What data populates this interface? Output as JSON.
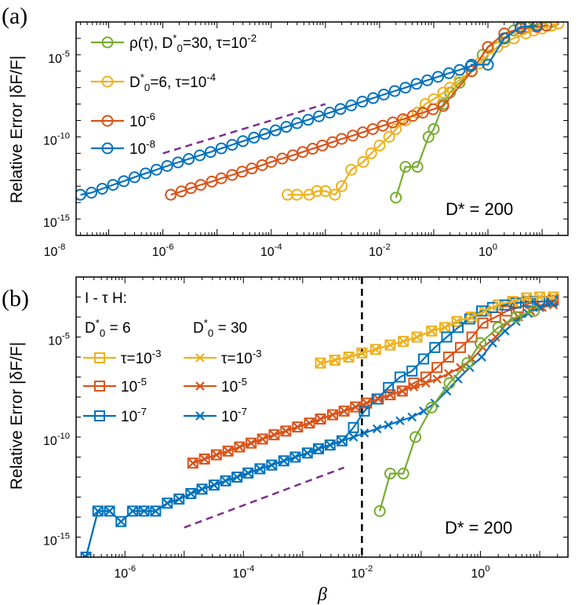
{
  "figure": {
    "xlabel": "β",
    "ylabel": "Relative Error |δF/F|"
  },
  "colors": {
    "green": "#77AC30",
    "yellow": "#EDB120",
    "orange": "#D95319",
    "blue": "#0072BD",
    "purple": "#7E2F8E",
    "black": "#000000"
  },
  "chart_data": [
    {
      "type": "line",
      "panel_label": "(a)",
      "xscale": "log",
      "yscale": "log",
      "xlim": [
        2.5e-08,
        30
      ],
      "ylim": [
        1e-16,
        0.001
      ],
      "xticks": [
        {
          "base": "10",
          "exp": "-8",
          "v": 1e-08
        },
        {
          "base": "10",
          "exp": "-6",
          "v": 1e-06
        },
        {
          "base": "10",
          "exp": "-4",
          "v": 0.0001
        },
        {
          "base": "10",
          "exp": "-2",
          "v": 0.01
        },
        {
          "base": "10",
          "exp": "0",
          "v": 1
        }
      ],
      "yticks": [
        {
          "base": "10",
          "exp": "-15",
          "v": 1e-15
        },
        {
          "base": "10",
          "exp": "-10",
          "v": 1e-10
        },
        {
          "base": "10",
          "exp": "-5",
          "v": 1e-05
        }
      ],
      "annotation": "D* = 200",
      "legend": [
        {
          "color": "green",
          "marker": "o",
          "prefix": "ρ(τ), D",
          "sup": "*",
          "sub": "0",
          "mid": "=30, τ=10",
          "exp": "-2"
        },
        {
          "color": "yellow",
          "marker": "o",
          "prefix": "D",
          "sup": "*",
          "sub": "0",
          "mid": "=6, τ=10",
          "exp": "-4"
        },
        {
          "color": "orange",
          "marker": "o",
          "prefix": "10",
          "exp": "-6"
        },
        {
          "color": "blue",
          "marker": "o",
          "prefix": "10",
          "exp": "-8"
        }
      ],
      "reference_line": {
        "color": "purple",
        "x": [
          1e-06,
          0.001
        ],
        "y": [
          1e-11,
          1e-08
        ]
      },
      "series": [
        {
          "name": "ρ(τ), D*0=30, τ=1e-2",
          "color": "green",
          "marker": "o",
          "x": [
            0.02,
            0.03,
            0.05,
            0.08,
            0.1,
            0.15,
            0.2,
            0.3,
            0.5,
            0.8,
            1,
            2,
            3,
            5,
            8,
            15
          ],
          "y": [
            2e-14,
            1.5e-12,
            1.5e-12,
            1e-10,
            3e-10,
            1e-08,
            5e-08,
            2e-07,
            1e-06,
            1e-05,
            3e-05,
            0.0001,
            0.0003,
            0.0005,
            0.0007,
            0.001
          ]
        },
        {
          "name": "D*0=6, τ=1e-4",
          "color": "yellow",
          "marker": "o",
          "x": [
            0.0002,
            0.0003,
            0.0005,
            0.0007,
            0.001,
            0.0015,
            0.002,
            0.003,
            0.005,
            0.007,
            0.01,
            0.015,
            0.02,
            0.03,
            0.05,
            0.07,
            0.1,
            0.15,
            0.2,
            0.3,
            0.5,
            0.7,
            1,
            1.5,
            2,
            3,
            5,
            7,
            10,
            15,
            20
          ],
          "y": [
            3e-14,
            3e-14,
            3e-14,
            5e-14,
            5e-14,
            3e-14,
            1e-13,
            1e-12,
            3e-12,
            1e-11,
            3e-11,
            1e-10,
            3e-10,
            1e-09,
            3e-09,
            1e-08,
            2e-08,
            5e-08,
            1e-07,
            3e-07,
            1e-06,
            3e-06,
            1e-05,
            3e-05,
            6e-05,
            0.0001,
            0.0002,
            0.0003,
            0.0004,
            0.0006,
            0.0008
          ]
        },
        {
          "name": "1e-6",
          "color": "orange",
          "marker": "o",
          "x": [
            1.4e-06,
            2.2e-06,
            3.3e-06,
            5e-06,
            8e-06,
            1.2e-05,
            1.9e-05,
            2.9e-05,
            4.4e-05,
            6.8e-05,
            0.0001,
            0.00016,
            0.00025,
            0.00038,
            0.00058,
            0.00088,
            0.00135,
            0.002,
            0.0032,
            0.0049,
            0.0075,
            0.0115,
            0.0175,
            0.027,
            0.041,
            0.063,
            0.097,
            0.15,
            0.5,
            1,
            2,
            4,
            8,
            12
          ],
          "y": [
            3e-14,
            4.8e-14,
            7.6e-14,
            1.2e-13,
            1.9e-13,
            3e-13,
            4.8e-13,
            7.6e-13,
            1.2e-12,
            1.9e-12,
            3e-12,
            4.8e-12,
            7.6e-12,
            1.2e-11,
            1.9e-11,
            3e-11,
            4.8e-11,
            7.6e-11,
            1.2e-10,
            1.9e-10,
            3e-10,
            4.8e-10,
            7.6e-10,
            1.2e-09,
            1.9e-09,
            3e-09,
            4.8e-09,
            7.6e-09,
            1e-06,
            3e-05,
            0.0002,
            0.0004,
            0.0005,
            0.0006
          ]
        },
        {
          "name": "1e-8",
          "color": "blue",
          "marker": "o",
          "x": [
            3e-08,
            4.8e-08,
            7.6e-08,
            1.2e-07,
            1.9e-07,
            3e-07,
            4.8e-07,
            7.6e-07,
            1.2e-06,
            1.9e-06,
            3e-06,
            4.8e-06,
            7.6e-06,
            1.2e-05,
            1.9e-05,
            3e-05,
            4.8e-05,
            7.6e-05,
            0.00012,
            0.00019,
            0.0003,
            0.00048,
            0.00076,
            0.0012,
            0.0019,
            0.003,
            0.0048,
            0.0076,
            0.012,
            0.019,
            0.03,
            0.048,
            0.076,
            0.12,
            0.19,
            0.3,
            0.48,
            0.5,
            1,
            2,
            4,
            8
          ],
          "y": [
            3e-14,
            4e-14,
            7e-14,
            1.2e-13,
            2e-13,
            3.5e-13,
            6e-13,
            1e-12,
            1.7e-12,
            2.8e-12,
            4.5e-12,
            7.5e-12,
            1.2e-11,
            2e-11,
            3.3e-11,
            5.5e-11,
            9e-11,
            1.5e-10,
            2.5e-10,
            4.1e-10,
            6.8e-10,
            1.1e-09,
            1.8e-09,
            3e-09,
            5e-09,
            8.3e-09,
            1.4e-08,
            2.3e-08,
            3.8e-08,
            6.2e-08,
            1e-07,
            1.7e-07,
            2.8e-07,
            4.6e-07,
            7.6e-07,
            1.2e-06,
            2e-06,
            2.5e-06,
            2.5e-06,
            0.0001,
            0.0005,
            0.0006
          ]
        }
      ]
    },
    {
      "type": "line",
      "panel_label": "(b)",
      "xscale": "log",
      "yscale": "log",
      "xlim": [
        1.5e-07,
        30
      ],
      "ylim": [
        1e-16,
        0.01
      ],
      "xticks": [
        {
          "base": "10",
          "exp": "-6",
          "v": 1e-06
        },
        {
          "base": "10",
          "exp": "-4",
          "v": 0.0001
        },
        {
          "base": "10",
          "exp": "-2",
          "v": 0.01
        },
        {
          "base": "10",
          "exp": "0",
          "v": 1
        }
      ],
      "yticks": [
        {
          "base": "10",
          "exp": "-15",
          "v": 1e-15
        },
        {
          "base": "10",
          "exp": "-10",
          "v": 1e-10
        },
        {
          "base": "10",
          "exp": "-5",
          "v": 1e-05
        }
      ],
      "annotation": "D* = 200",
      "legend_title": "I - τ H:",
      "legend_col_headers": [
        {
          "prefix": "D",
          "sup": "*",
          "sub": "0",
          "mid": " = 6"
        },
        {
          "prefix": "D",
          "sup": "*",
          "sub": "0",
          "mid": " = 30"
        }
      ],
      "legend": [
        {
          "color": "yellow",
          "marker": "s",
          "prefix": "τ=10",
          "exp": "-3"
        },
        {
          "color": "orange",
          "marker": "s",
          "prefix": "10",
          "exp": "-5"
        },
        {
          "color": "blue",
          "marker": "s",
          "prefix": "10",
          "exp": "-7"
        },
        {
          "color": "yellow",
          "marker": "x",
          "prefix": "τ=10",
          "exp": "-3"
        },
        {
          "color": "orange",
          "marker": "x",
          "prefix": "10",
          "exp": "-5"
        },
        {
          "color": "blue",
          "marker": "x",
          "prefix": "10",
          "exp": "-7"
        }
      ],
      "vline_x": 0.01,
      "reference_line": {
        "color": "purple",
        "x": [
          1e-05,
          0.005
        ],
        "y": [
          3e-15,
          3e-12
        ]
      },
      "series": [
        {
          "name": "D*0=6, τ=1e-3",
          "color": "yellow",
          "marker": "s",
          "x": [
            0.002,
            0.0035,
            0.006,
            0.01,
            0.017,
            0.03,
            0.05,
            0.085,
            0.15,
            0.25,
            0.4,
            0.7,
            1.2,
            2,
            3.5,
            6,
            10,
            17
          ],
          "y": [
            5e-07,
            7e-07,
            1e-06,
            1.6e-06,
            2.4e-06,
            4e-06,
            6e-06,
            1e-05,
            2e-05,
            3e-05,
            6e-05,
            0.0001,
            0.0002,
            0.0004,
            0.0006,
            0.0009,
            0.001,
            0.001
          ]
        },
        {
          "name": "D*0=6, τ=1e-5",
          "color": "orange",
          "marker": "s",
          "x": [
            1.4e-05,
            2.2e-05,
            3.5e-05,
            5.5e-05,
            8.6e-05,
            0.000135,
            0.00021,
            0.00033,
            0.00052,
            0.00082,
            0.0013,
            0.002,
            0.0032,
            0.005,
            0.0078,
            0.012,
            0.019,
            0.03,
            0.048,
            0.075,
            0.12,
            0.185,
            0.29,
            0.46,
            0.72,
            1.1,
            1.8,
            2.8,
            4.4,
            7,
            11,
            17
          ],
          "y": [
            5e-12,
            8e-12,
            1.3e-11,
            2e-11,
            3.2e-11,
            5e-11,
            8e-11,
            1.3e-10,
            2e-10,
            3.2e-10,
            5e-10,
            8e-10,
            1.3e-09,
            2e-09,
            3.2e-09,
            5e-09,
            8e-09,
            1.3e-08,
            2e-08,
            5e-08,
            1e-07,
            3e-07,
            1e-06,
            3e-06,
            1e-05,
            5e-05,
            0.0001,
            0.0002,
            0.0003,
            0.0005,
            0.0006,
            0.0007
          ]
        },
        {
          "name": "D*0=6, τ=1e-7",
          "color": "blue",
          "marker": "s",
          "x": [
            2.2e-07,
            3.5e-07,
            5.5e-07,
            8.6e-07,
            1.35e-06,
            2.1e-06,
            3.3e-06,
            5.2e-06,
            8.2e-06,
            1.3e-05,
            2e-05,
            3.2e-05,
            5e-05,
            7.8e-05,
            0.00012,
            0.00019,
            0.0003,
            0.00048,
            0.00075,
            0.0012,
            0.00185,
            0.0029,
            0.0046,
            0.0072,
            0.011,
            0.018,
            0.028,
            0.044,
            0.07,
            0.11,
            0.17,
            0.27,
            0.42,
            0.66,
            1.05,
            1.6,
            2.6,
            4,
            6.4,
            10,
            16
          ],
          "y": [
            1e-16,
            2e-14,
            2e-14,
            6e-15,
            2e-14,
            2e-14,
            2e-14,
            5e-14,
            8e-14,
            1.5e-13,
            2.5e-13,
            4e-13,
            6.5e-13,
            1e-12,
            1.6e-12,
            2.6e-12,
            4e-12,
            6.5e-12,
            1e-11,
            1.6e-11,
            2.6e-11,
            4e-11,
            6.5e-11,
            3e-10,
            2e-09,
            8e-09,
            3e-08,
            1e-07,
            2e-07,
            8e-07,
            3e-06,
            1e-05,
            3e-05,
            8e-05,
            0.0002,
            0.0003,
            0.0004,
            0.0005,
            0.0006,
            0.0006,
            0.0006
          ]
        },
        {
          "name": "D*0=30, τ=1e-3",
          "color": "yellow",
          "marker": "x",
          "x": [
            0.002,
            0.0035,
            0.006,
            0.01,
            0.017,
            0.03,
            0.05,
            0.085,
            0.15,
            0.25,
            0.4,
            0.7,
            1.2,
            2,
            3.5,
            6,
            10,
            17
          ],
          "y": [
            5e-07,
            7e-07,
            1e-06,
            1.6e-06,
            2.4e-06,
            4e-06,
            6e-06,
            1e-05,
            2e-05,
            3e-05,
            6e-05,
            0.0001,
            0.0002,
            0.0004,
            0.0006,
            0.0009,
            0.001,
            0.001
          ]
        },
        {
          "name": "D*0=30, τ=1e-5",
          "color": "orange",
          "marker": "x",
          "x": [
            1.4e-05,
            2.2e-05,
            3.5e-05,
            5.5e-05,
            8.6e-05,
            0.000135,
            0.00021,
            0.00033,
            0.00052,
            0.00082,
            0.0013,
            0.002,
            0.0032,
            0.005,
            0.0078,
            0.012,
            0.019,
            0.03,
            0.048,
            0.075,
            0.12,
            0.185,
            0.29,
            0.46,
            0.72,
            1.1,
            1.8,
            2.8,
            4.4,
            7,
            11,
            17
          ],
          "y": [
            5e-12,
            8e-12,
            1.3e-11,
            2e-11,
            3.2e-11,
            5e-11,
            8e-11,
            1.3e-10,
            2e-10,
            3.2e-10,
            5e-10,
            8e-10,
            1.3e-09,
            2e-09,
            3.2e-09,
            5e-09,
            8e-09,
            1.3e-08,
            2e-08,
            3.2e-08,
            5e-08,
            8e-08,
            1.5e-07,
            3e-07,
            8e-07,
            3e-06,
            1e-05,
            5e-05,
            0.0001,
            0.0002,
            0.0003,
            0.0004
          ]
        },
        {
          "name": "D*0=30, τ=1e-7",
          "color": "blue",
          "marker": "x",
          "x": [
            2.2e-07,
            3.5e-07,
            5.5e-07,
            8.6e-07,
            1.35e-06,
            2.1e-06,
            3.3e-06,
            5.2e-06,
            8.2e-06,
            1.3e-05,
            2e-05,
            3.2e-05,
            5e-05,
            7.8e-05,
            0.00012,
            0.00019,
            0.0003,
            0.00048,
            0.00075,
            0.0012,
            0.00185,
            0.0029,
            0.0046,
            0.0072,
            0.011,
            0.018,
            0.028,
            0.044,
            0.07,
            0.11,
            0.17,
            0.27,
            0.42,
            0.66,
            1.05,
            1.6,
            2.6,
            4,
            6.4,
            10,
            16
          ],
          "y": [
            1e-16,
            2e-14,
            2e-14,
            6e-15,
            2e-14,
            2e-14,
            2e-14,
            5e-14,
            8e-14,
            1.5e-13,
            2.5e-13,
            4e-13,
            6.5e-13,
            1e-12,
            1.6e-12,
            2.6e-12,
            4e-12,
            6.5e-12,
            1e-11,
            1.6e-11,
            2.6e-11,
            4e-11,
            6.5e-11,
            1e-10,
            1.6e-10,
            2.6e-10,
            4e-10,
            6.5e-10,
            1e-09,
            2e-09,
            5e-09,
            2e-08,
            8e-08,
            3e-07,
            1e-06,
            5e-06,
            2e-05,
            6e-05,
            0.00015,
            0.0003,
            0.0005
          ]
        },
        {
          "name": "ρ(τ) D*0=30",
          "color": "green",
          "marker": "o",
          "x": [
            0.02,
            0.03,
            0.05,
            0.08,
            0.15,
            0.3,
            0.6,
            1,
            2,
            4,
            8
          ],
          "y": [
            2e-14,
            1.5e-12,
            1.5e-12,
            1e-10,
            3e-09,
            5e-08,
            5e-07,
            5e-06,
            3e-05,
            0.0001,
            0.0002
          ]
        }
      ]
    }
  ]
}
